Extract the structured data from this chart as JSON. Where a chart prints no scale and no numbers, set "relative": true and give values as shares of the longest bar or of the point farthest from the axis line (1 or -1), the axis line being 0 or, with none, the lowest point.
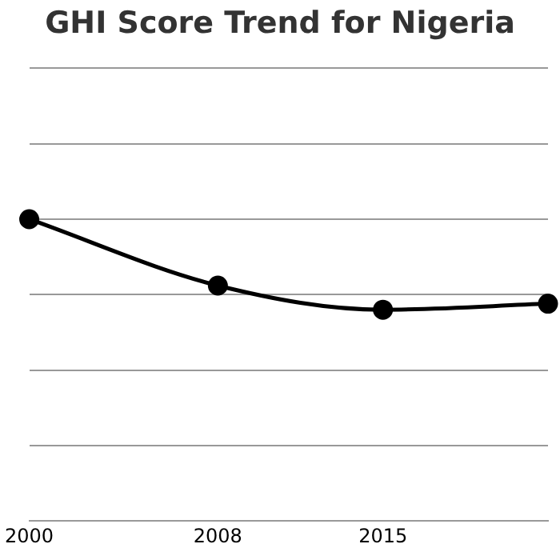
{
  "chart_data": {
    "type": "line",
    "title": "GHI Score Trend for Nigeria",
    "relative": true,
    "x": [
      2000,
      2008,
      2015,
      2022
    ],
    "series": [
      {
        "color": "#000000",
        "values": [
          1,
          0.78,
          0.7,
          0.72
        ]
      }
    ],
    "xlim": [
      2000,
      2022
    ],
    "xticks": [
      2000,
      2008,
      2015
    ],
    "grid": "y",
    "legend": false,
    "marker": "circle",
    "line_style": "solid"
  }
}
